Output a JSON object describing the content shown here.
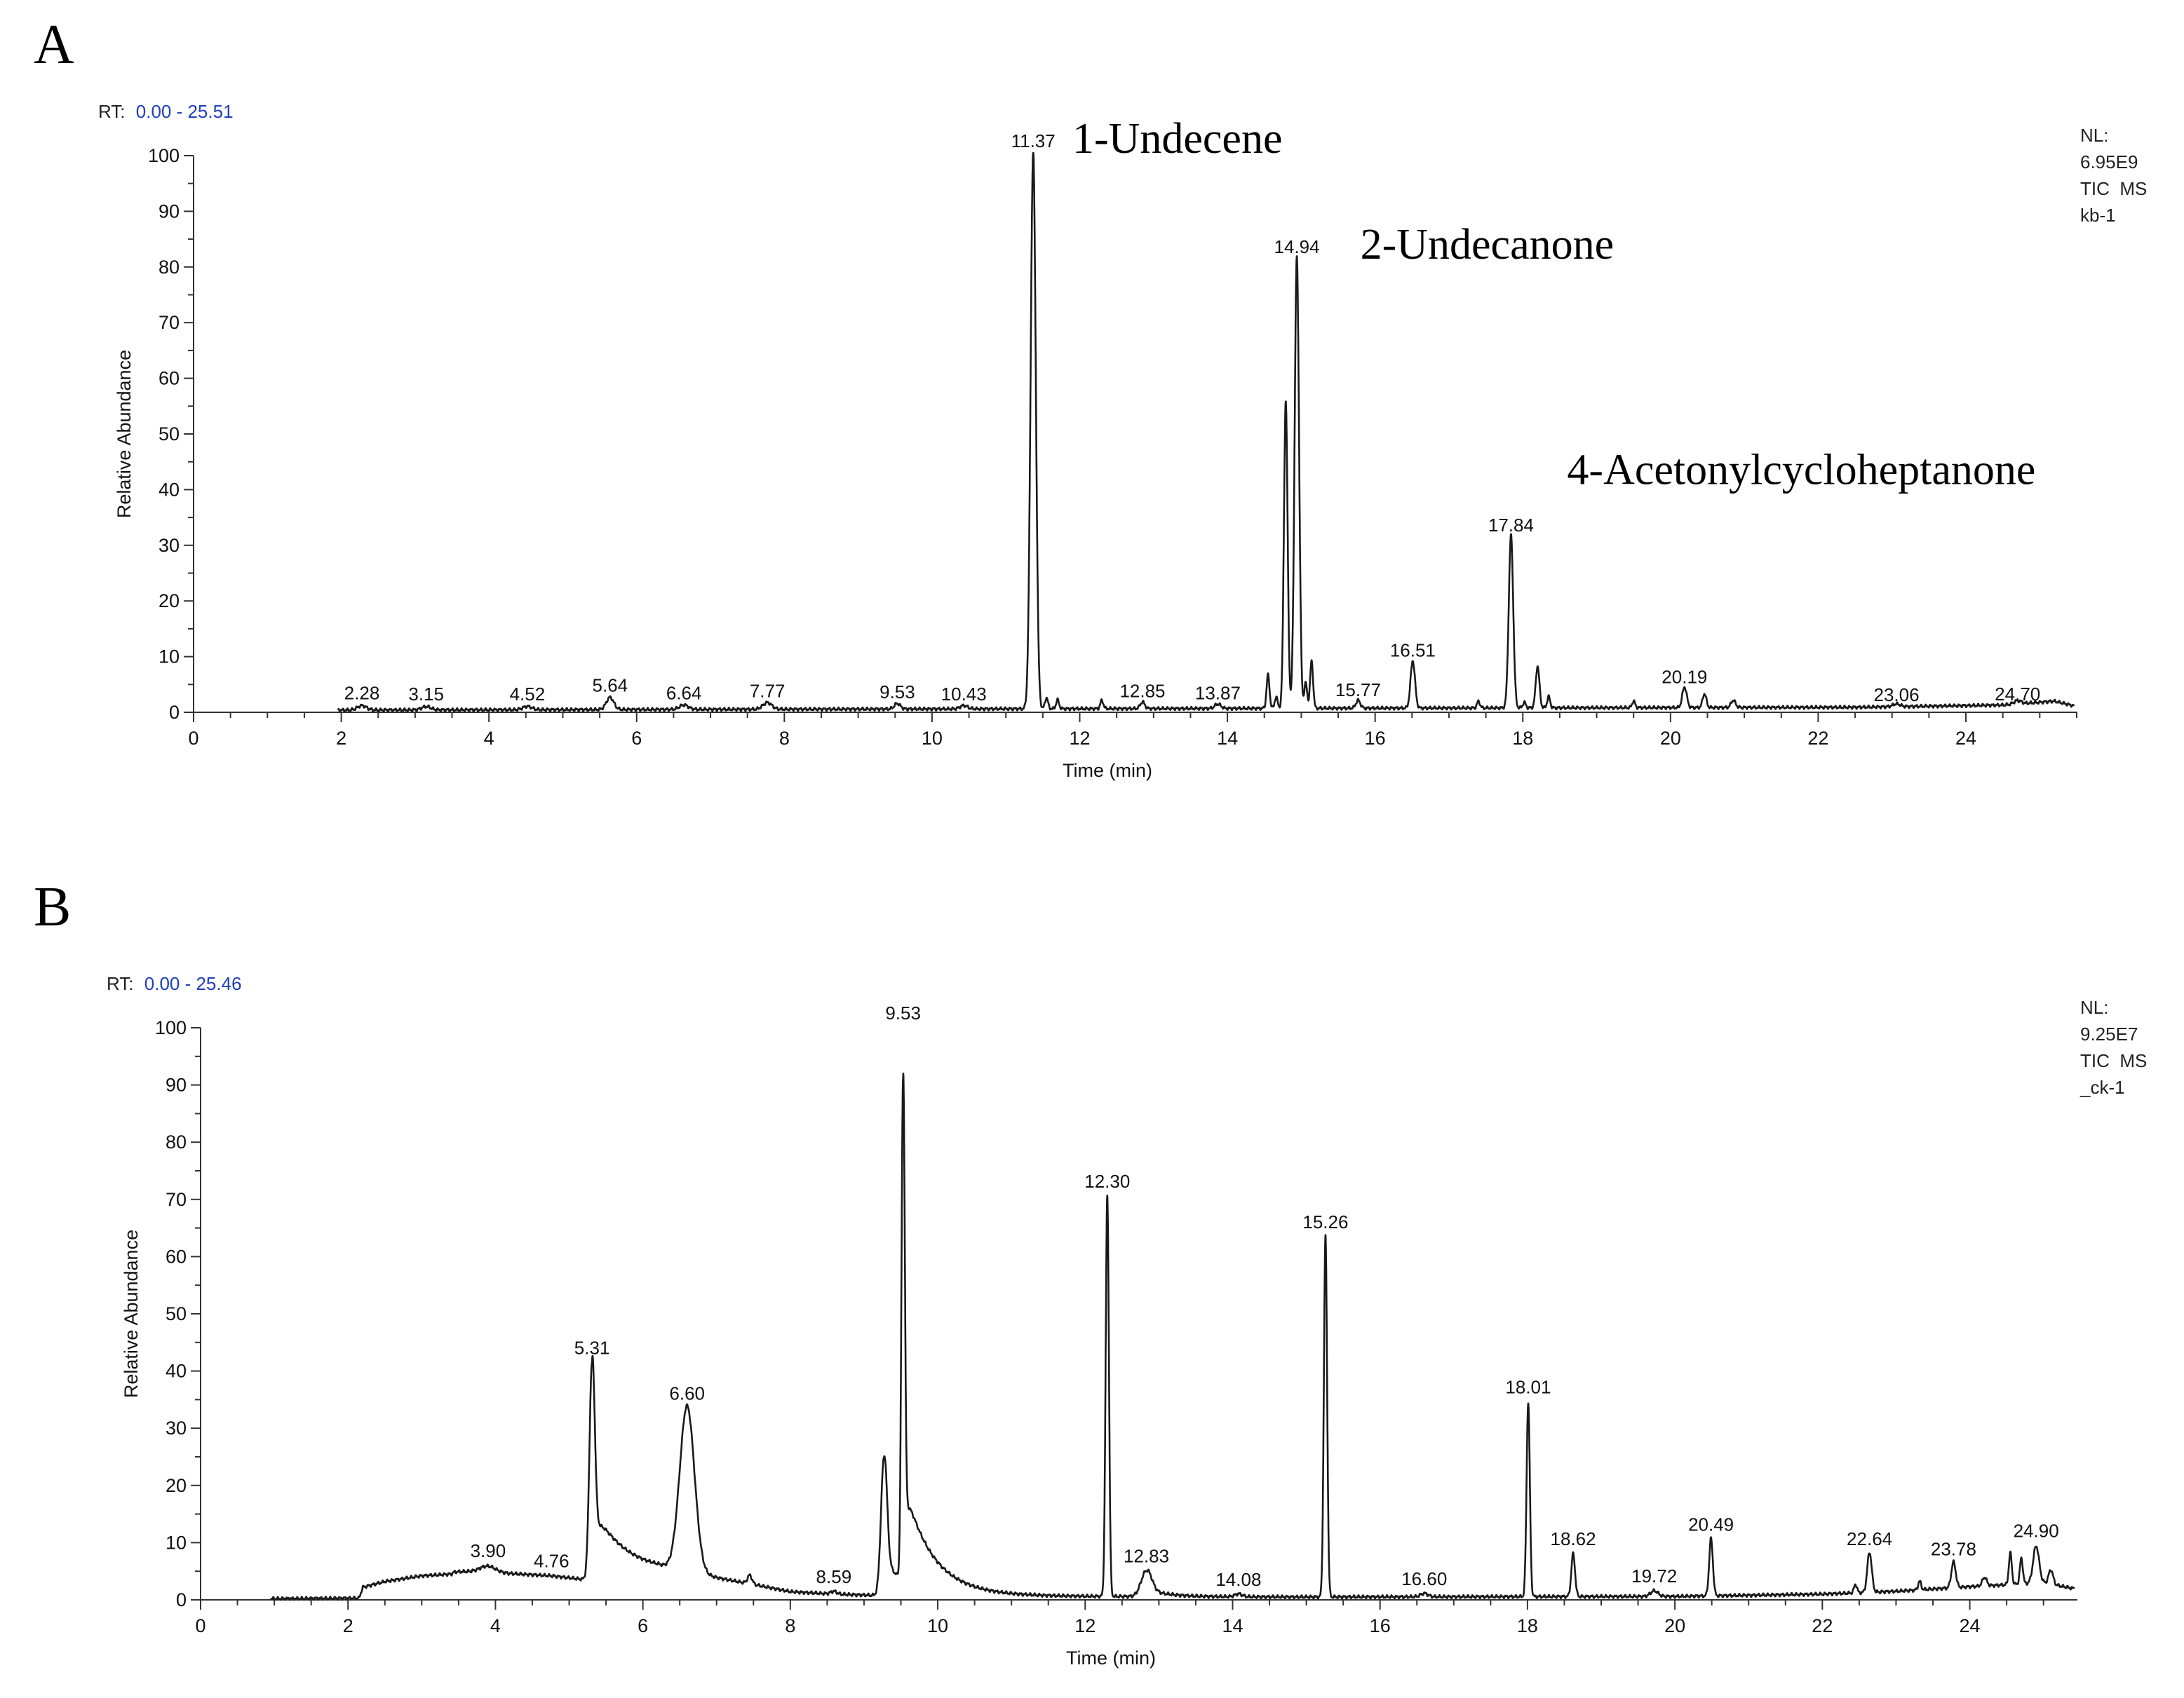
{
  "panels": [
    {
      "letter": "A",
      "rt_prefix": "RT:",
      "rt_range": "0.00 - 25.51",
      "nl_lines": [
        "NL:",
        "6.95E9",
        "TIC  MS",
        "kb-1"
      ],
      "compound_labels": [
        "1-Undecene",
        "2-Undecanone",
        "4-Acetonylcycloheptanone"
      ]
    },
    {
      "letter": "B",
      "rt_prefix": "RT:",
      "rt_range": "0.00 - 25.46",
      "nl_lines": [
        "NL:",
        "9.25E7",
        "TIC  MS",
        "_ck-1"
      ],
      "compound_labels": []
    }
  ],
  "colors": {
    "trace": "#1a1a1a",
    "axis": "#333333",
    "rt_value": "#1f3fbf",
    "text": "#111111"
  },
  "chart_data": [
    {
      "type": "line",
      "title": "",
      "xlabel": "Time (min)",
      "ylabel": "Relative Abundance",
      "xlim": [
        0,
        25.51
      ],
      "ylim": [
        0,
        100
      ],
      "xticks": [
        0,
        2,
        4,
        6,
        8,
        10,
        12,
        14,
        16,
        18,
        20,
        22,
        24
      ],
      "yticks": [
        0,
        10,
        20,
        30,
        40,
        50,
        60,
        70,
        80,
        90,
        100
      ],
      "grid": false,
      "baseline": [
        [
          2.0,
          0.4
        ],
        [
          10.0,
          0.6
        ],
        [
          22.5,
          0.9
        ],
        [
          24.5,
          1.3
        ],
        [
          25.2,
          2.0
        ],
        [
          25.45,
          1.2
        ]
      ],
      "peaks": [
        {
          "rt": 2.28,
          "height": 0.8,
          "width": 0.06
        },
        {
          "rt": 3.15,
          "height": 0.6,
          "width": 0.06
        },
        {
          "rt": 4.52,
          "height": 0.6,
          "width": 0.06
        },
        {
          "rt": 5.64,
          "height": 2.2,
          "width": 0.05
        },
        {
          "rt": 6.64,
          "height": 0.8,
          "width": 0.06
        },
        {
          "rt": 7.77,
          "height": 1.2,
          "width": 0.06
        },
        {
          "rt": 9.53,
          "height": 1.0,
          "width": 0.04
        },
        {
          "rt": 10.43,
          "height": 0.6,
          "width": 0.05
        },
        {
          "rt": 11.37,
          "height": 100,
          "width": 0.035
        },
        {
          "rt": 11.55,
          "height": 2.0,
          "width": 0.02
        },
        {
          "rt": 11.7,
          "height": 1.6,
          "width": 0.02
        },
        {
          "rt": 12.3,
          "height": 1.5,
          "width": 0.02
        },
        {
          "rt": 12.85,
          "height": 1.2,
          "width": 0.03
        },
        {
          "rt": 13.87,
          "height": 0.8,
          "width": 0.04
        },
        {
          "rt": 14.55,
          "height": 6.0,
          "width": 0.02
        },
        {
          "rt": 14.66,
          "height": 2.0,
          "width": 0.02
        },
        {
          "rt": 14.79,
          "height": 55,
          "width": 0.025
        },
        {
          "rt": 14.94,
          "height": 81,
          "width": 0.03
        },
        {
          "rt": 15.06,
          "height": 4.5,
          "width": 0.02
        },
        {
          "rt": 15.14,
          "height": 8.5,
          "width": 0.02
        },
        {
          "rt": 15.77,
          "height": 1.4,
          "width": 0.03
        },
        {
          "rt": 16.51,
          "height": 8.5,
          "width": 0.03
        },
        {
          "rt": 17.4,
          "height": 1.2,
          "width": 0.02
        },
        {
          "rt": 17.84,
          "height": 31,
          "width": 0.03
        },
        {
          "rt": 18.02,
          "height": 1.0,
          "width": 0.02
        },
        {
          "rt": 18.2,
          "height": 7.5,
          "width": 0.025
        },
        {
          "rt": 18.35,
          "height": 2.0,
          "width": 0.02
        },
        {
          "rt": 19.5,
          "height": 1.2,
          "width": 0.02
        },
        {
          "rt": 20.19,
          "height": 3.7,
          "width": 0.03
        },
        {
          "rt": 20.46,
          "height": 2.5,
          "width": 0.025
        },
        {
          "rt": 20.85,
          "height": 1.3,
          "width": 0.03
        },
        {
          "rt": 23.06,
          "height": 0.5,
          "width": 0.05
        },
        {
          "rt": 24.7,
          "height": 0.6,
          "width": 0.05
        }
      ],
      "rt_labels": [
        {
          "rt": 2.28,
          "y": 0.8,
          "text": "2.28"
        },
        {
          "rt": 3.15,
          "y": 0.6,
          "text": "3.15"
        },
        {
          "rt": 4.52,
          "y": 0.6,
          "text": "4.52"
        },
        {
          "rt": 5.64,
          "y": 2.2,
          "text": "5.64"
        },
        {
          "rt": 6.64,
          "y": 0.8,
          "text": "6.64"
        },
        {
          "rt": 7.77,
          "y": 1.2,
          "text": "7.77"
        },
        {
          "rt": 9.53,
          "y": 1.0,
          "text": "9.53"
        },
        {
          "rt": 10.43,
          "y": 0.6,
          "text": "10.43"
        },
        {
          "rt": 11.37,
          "y": 100,
          "text": "11.37"
        },
        {
          "rt": 12.85,
          "y": 1.2,
          "text": "12.85"
        },
        {
          "rt": 13.87,
          "y": 0.8,
          "text": "13.87"
        },
        {
          "rt": 14.94,
          "y": 81,
          "text": "14.94"
        },
        {
          "rt": 15.77,
          "y": 1.4,
          "text": "15.77"
        },
        {
          "rt": 16.51,
          "y": 8.5,
          "text": "16.51"
        },
        {
          "rt": 17.84,
          "y": 31,
          "text": "17.84"
        },
        {
          "rt": 20.19,
          "y": 3.7,
          "text": "20.19"
        },
        {
          "rt": 23.06,
          "y": 0.5,
          "text": "23.06"
        },
        {
          "rt": 24.7,
          "y": 0.6,
          "text": "24.70"
        }
      ],
      "annotations": [
        {
          "text": "1-Undecene",
          "x": 11.9,
          "y": 100.5
        },
        {
          "text": "2-Undecanone",
          "x": 15.8,
          "y": 81.5
        },
        {
          "text": "4-Acetonylcycloheptanone",
          "x": 18.6,
          "y": 41
        }
      ]
    },
    {
      "type": "line",
      "title": "",
      "xlabel": "Time (min)",
      "ylabel": "Relative Abundance",
      "xlim": [
        0,
        25.46
      ],
      "ylim": [
        0,
        100
      ],
      "xticks": [
        0,
        2,
        4,
        6,
        8,
        10,
        12,
        14,
        16,
        18,
        20,
        22,
        24
      ],
      "yticks": [
        0,
        10,
        20,
        30,
        40,
        50,
        60,
        70,
        80,
        90,
        100
      ],
      "grid": false,
      "baseline": [
        [
          1.0,
          0.2
        ],
        [
          2.15,
          0.3
        ],
        [
          2.2,
          2.2
        ],
        [
          2.5,
          3.2
        ],
        [
          3.0,
          4.2
        ],
        [
          3.4,
          4.5
        ],
        [
          3.45,
          4.9
        ],
        [
          3.8,
          5.0
        ],
        [
          4.2,
          4.6
        ],
        [
          4.76,
          4.2
        ],
        [
          5.1,
          3.7
        ],
        [
          5.3,
          3.5
        ],
        [
          6.2,
          4.5
        ],
        [
          6.8,
          4.0
        ],
        [
          7.5,
          2.6
        ],
        [
          8.0,
          1.4
        ],
        [
          8.59,
          1.0
        ],
        [
          9.1,
          0.8
        ],
        [
          12.0,
          0.6
        ],
        [
          15.0,
          0.5
        ],
        [
          20.0,
          0.6
        ],
        [
          22.0,
          1.0
        ],
        [
          23.0,
          1.5
        ],
        [
          24.0,
          2.3
        ],
        [
          25.0,
          3.0
        ],
        [
          25.4,
          2.0
        ]
      ],
      "peaks": [
        {
          "rt": 3.9,
          "height": 1.0,
          "width": 0.1
        },
        {
          "rt": 5.31,
          "height": 38,
          "width": 0.035,
          "tail": 0.45
        },
        {
          "rt": 6.6,
          "height": 29,
          "width": 0.1
        },
        {
          "rt": 7.45,
          "height": 1.5,
          "width": 0.03
        },
        {
          "rt": 8.59,
          "height": 0.5,
          "width": 0.04
        },
        {
          "rt": 9.27,
          "height": 24,
          "width": 0.04,
          "tail": 0.22
        },
        {
          "rt": 9.53,
          "height": 88,
          "width": 0.022,
          "tail": 0.4,
          "tail_height": 18
        },
        {
          "rt": 12.3,
          "height": 70,
          "width": 0.022
        },
        {
          "rt": 12.83,
          "height": 4.5,
          "width": 0.07,
          "tail": 0.25
        },
        {
          "rt": 14.08,
          "height": 0.5,
          "width": 0.05
        },
        {
          "rt": 15.26,
          "height": 63,
          "width": 0.022
        },
        {
          "rt": 16.6,
          "height": 0.6,
          "width": 0.05
        },
        {
          "rt": 18.01,
          "height": 34,
          "width": 0.022
        },
        {
          "rt": 18.62,
          "height": 7.5,
          "width": 0.025
        },
        {
          "rt": 19.72,
          "height": 1.0,
          "width": 0.05
        },
        {
          "rt": 20.49,
          "height": 10,
          "width": 0.025
        },
        {
          "rt": 22.45,
          "height": 1.5,
          "width": 0.02
        },
        {
          "rt": 22.64,
          "height": 7.0,
          "width": 0.03
        },
        {
          "rt": 23.32,
          "height": 1.5,
          "width": 0.02
        },
        {
          "rt": 23.78,
          "height": 4.5,
          "width": 0.03
        },
        {
          "rt": 24.2,
          "height": 1.5,
          "width": 0.03
        },
        {
          "rt": 24.55,
          "height": 5.5,
          "width": 0.02
        },
        {
          "rt": 24.7,
          "height": 4.5,
          "width": 0.02
        },
        {
          "rt": 24.9,
          "height": 6.5,
          "width": 0.04
        },
        {
          "rt": 25.1,
          "height": 2.5,
          "width": 0.03
        }
      ],
      "rt_labels": [
        {
          "rt": 3.9,
          "y": 6.0,
          "text": "3.90"
        },
        {
          "rt": 4.76,
          "y": 4.2,
          "text": "4.76"
        },
        {
          "rt": 5.31,
          "y": 41.5,
          "text": "5.31"
        },
        {
          "rt": 6.6,
          "y": 33.5,
          "text": "6.60"
        },
        {
          "rt": 8.59,
          "y": 1.5,
          "text": "8.59"
        },
        {
          "rt": 9.53,
          "y": 100,
          "text": "9.53"
        },
        {
          "rt": 12.3,
          "y": 70.6,
          "text": "12.30"
        },
        {
          "rt": 12.83,
          "y": 5.1,
          "text": "12.83"
        },
        {
          "rt": 14.08,
          "y": 1.0,
          "text": "14.08"
        },
        {
          "rt": 15.26,
          "y": 63.5,
          "text": "15.26"
        },
        {
          "rt": 16.6,
          "y": 1.1,
          "text": "16.60"
        },
        {
          "rt": 18.01,
          "y": 34.6,
          "text": "18.01"
        },
        {
          "rt": 18.62,
          "y": 8.1,
          "text": "18.62"
        },
        {
          "rt": 19.72,
          "y": 1.6,
          "text": "19.72"
        },
        {
          "rt": 20.49,
          "y": 10.6,
          "text": "20.49"
        },
        {
          "rt": 22.64,
          "y": 8.1,
          "text": "22.64"
        },
        {
          "rt": 23.78,
          "y": 6.3,
          "text": "23.78"
        },
        {
          "rt": 24.9,
          "y": 9.5,
          "text": "24.90"
        }
      ],
      "annotations": []
    }
  ]
}
